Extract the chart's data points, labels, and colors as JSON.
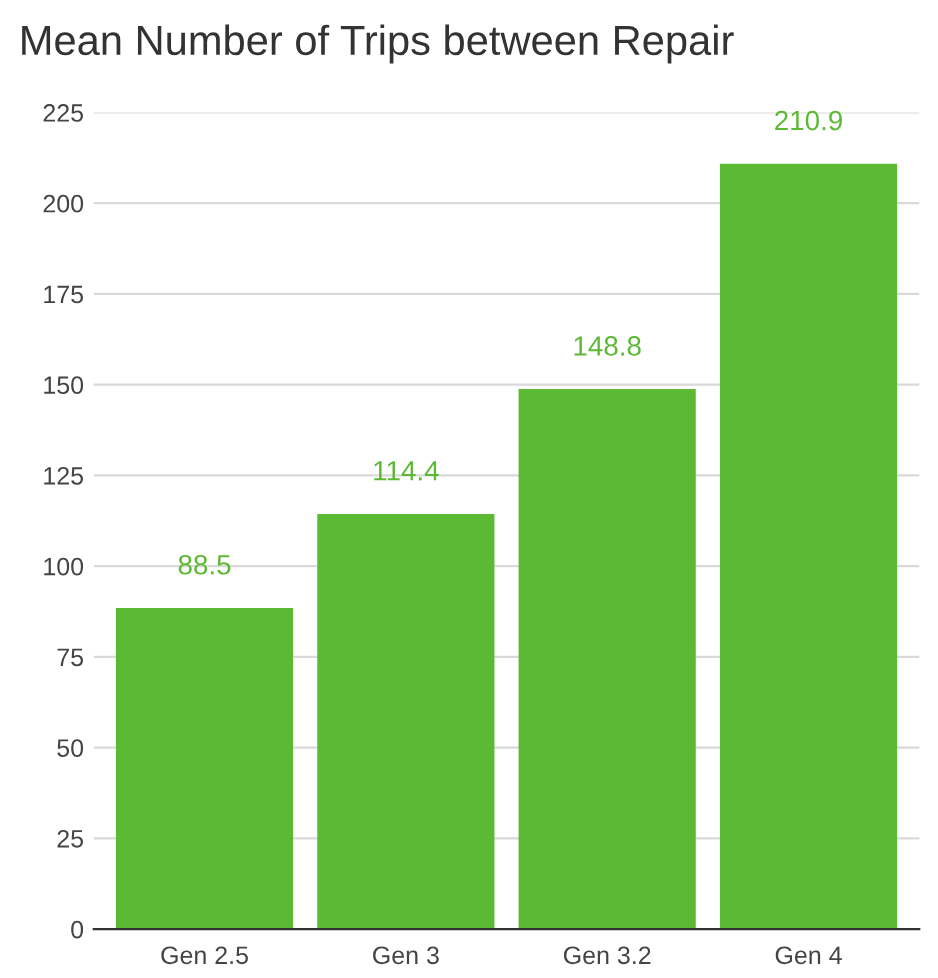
{
  "chart_data": {
    "type": "bar",
    "title": "Mean Number of Trips between Repair",
    "categories": [
      "Gen 2.5",
      "Gen 3",
      "Gen 3.2",
      "Gen 4"
    ],
    "values": [
      88.5,
      114.4,
      148.8,
      210.9
    ],
    "color": "#5cb933",
    "ylim": [
      0,
      225
    ],
    "yticks": [
      0,
      25,
      50,
      75,
      100,
      125,
      150,
      175,
      200,
      225
    ],
    "grid": "y",
    "data_labels": true,
    "legend": false
  }
}
